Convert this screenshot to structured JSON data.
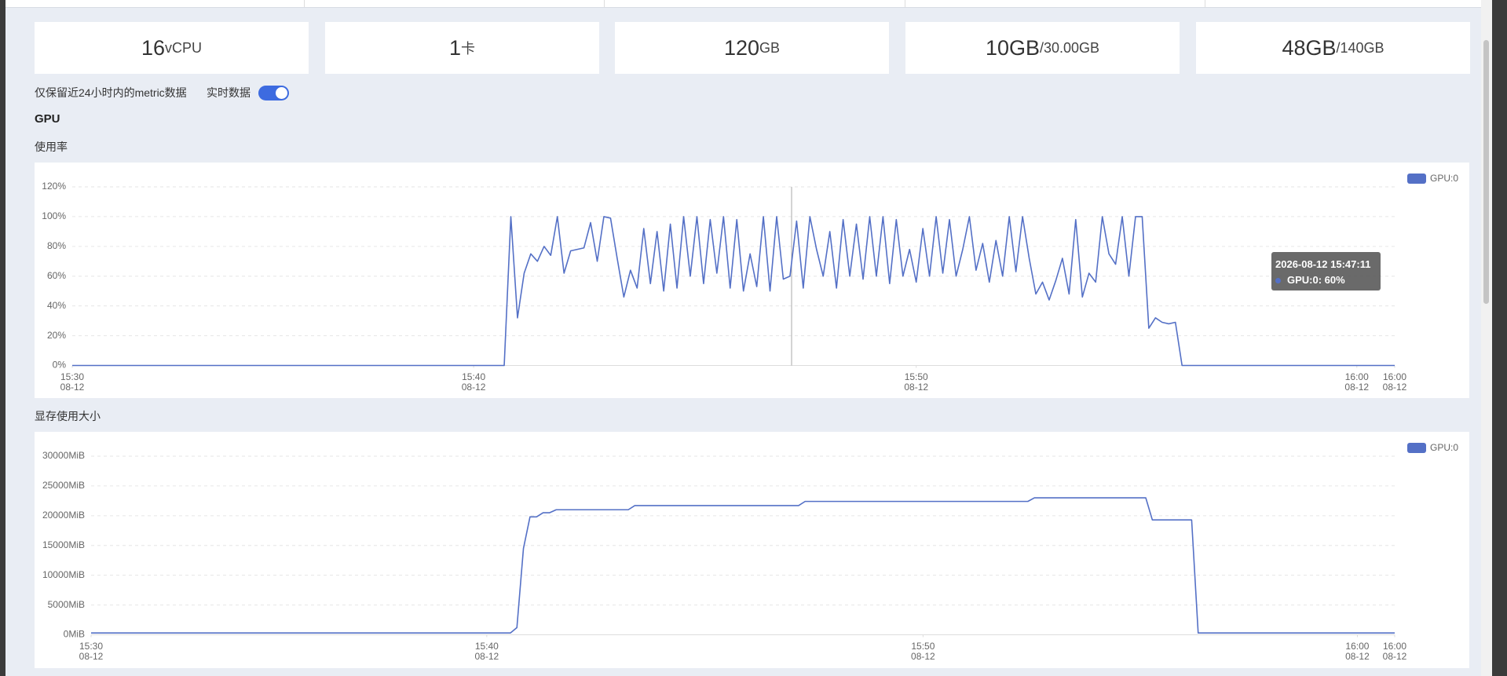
{
  "cards": [
    {
      "value": "16",
      "unit": "vCPU"
    },
    {
      "value": "1",
      "unit": "卡"
    },
    {
      "value": "120",
      "unit": "GB"
    },
    {
      "value": "10GB",
      "unit": "/30.00GB"
    },
    {
      "value": "48GB",
      "unit": "/140GB"
    }
  ],
  "retention_note": "仅保留近24小时内的metric数据",
  "realtime_label": "实时数据",
  "realtime_on": true,
  "section_title": "GPU",
  "chart_data": [
    {
      "type": "line",
      "title": "使用率",
      "xlim": [
        0,
        199
      ],
      "xticks": [
        {
          "value": 0,
          "label": "15:30\n08-12"
        },
        {
          "value": 60.4,
          "label": "15:40\n08-12"
        },
        {
          "value": 127,
          "label": "15:50\n08-12"
        },
        {
          "value": 193.3,
          "label": "16:00\n08-12"
        },
        {
          "value": 199,
          "label": "16:00\n08-12"
        }
      ],
      "ylim": [
        0,
        120
      ],
      "yticks": [
        {
          "value": 0,
          "label": "0%"
        },
        {
          "value": 20,
          "label": "20%"
        },
        {
          "value": 40,
          "label": "40%"
        },
        {
          "value": 60,
          "label": "60%"
        },
        {
          "value": 80,
          "label": "80%"
        },
        {
          "value": 100,
          "label": "100%"
        },
        {
          "value": 120,
          "label": "120%"
        }
      ],
      "grid": true,
      "legend": "top-right",
      "tooltip": {
        "title": "2026-08-12 15:47:11",
        "lines": [
          "GPU:0: 60%"
        ]
      },
      "series": [
        {
          "name": "GPU:0",
          "color": "#5470c6",
          "values": [
            0,
            0,
            0,
            0,
            0,
            0,
            0,
            0,
            0,
            0,
            0,
            0,
            0,
            0,
            0,
            0,
            0,
            0,
            0,
            0,
            0,
            0,
            0,
            0,
            0,
            0,
            0,
            0,
            0,
            0,
            0,
            0,
            0,
            0,
            0,
            0,
            0,
            0,
            0,
            0,
            0,
            0,
            0,
            0,
            0,
            0,
            0,
            0,
            0,
            0,
            0,
            0,
            0,
            0,
            0,
            0,
            0,
            0,
            0,
            0,
            0,
            0,
            0,
            0,
            0,
            0,
            100,
            32,
            62,
            75,
            70,
            80,
            74,
            100,
            62,
            77,
            78,
            79,
            96,
            70,
            100,
            99,
            72,
            46,
            64,
            52,
            92,
            55,
            90,
            50,
            95,
            52,
            100,
            60,
            100,
            55,
            98,
            62,
            100,
            52,
            98,
            50,
            75,
            53,
            100,
            50,
            100,
            58,
            60,
            97,
            52,
            100,
            78,
            60,
            90,
            52,
            98,
            60,
            95,
            58,
            100,
            60,
            100,
            55,
            98,
            60,
            78,
            56,
            92,
            60,
            100,
            62,
            98,
            60,
            78,
            100,
            64,
            82,
            56,
            84,
            60,
            100,
            63,
            100,
            72,
            48,
            56,
            44,
            57,
            72,
            48,
            98,
            46,
            62,
            56,
            100,
            75,
            68,
            100,
            60,
            100,
            100,
            25,
            32,
            29,
            28,
            29,
            0,
            0,
            0,
            0,
            0,
            0,
            0,
            0,
            0,
            0,
            0,
            0,
            0,
            0,
            0,
            0,
            0,
            0,
            0,
            0,
            0,
            0,
            0,
            0,
            0,
            0,
            0,
            0,
            0,
            0,
            0,
            0,
            0
          ]
        }
      ]
    },
    {
      "type": "line",
      "title": "显存使用大小",
      "xlim": [
        0,
        199
      ],
      "xticks": [
        {
          "value": 0,
          "label": "15:30\n08-12"
        },
        {
          "value": 60.4,
          "label": "15:40\n08-12"
        },
        {
          "value": 127,
          "label": "15:50\n08-12"
        },
        {
          "value": 193.3,
          "label": "16:00\n08-12"
        },
        {
          "value": 199,
          "label": "16:00\n08-12"
        }
      ],
      "ylim": [
        0,
        30000
      ],
      "yticks": [
        {
          "value": 0,
          "label": "0MiB"
        },
        {
          "value": 5000,
          "label": "5000MiB"
        },
        {
          "value": 10000,
          "label": "10000MiB"
        },
        {
          "value": 15000,
          "label": "15000MiB"
        },
        {
          "value": 20000,
          "label": "20000MiB"
        },
        {
          "value": 25000,
          "label": "25000MiB"
        },
        {
          "value": 30000,
          "label": "30000MiB"
        }
      ],
      "grid": true,
      "legend": "top-right",
      "series": [
        {
          "name": "GPU:0",
          "color": "#5470c6",
          "values": [
            300,
            300,
            300,
            300,
            300,
            300,
            300,
            300,
            300,
            300,
            300,
            300,
            300,
            300,
            300,
            300,
            300,
            300,
            300,
            300,
            300,
            300,
            300,
            300,
            300,
            300,
            300,
            300,
            300,
            300,
            300,
            300,
            300,
            300,
            300,
            300,
            300,
            300,
            300,
            300,
            300,
            300,
            300,
            300,
            300,
            300,
            300,
            300,
            300,
            300,
            300,
            300,
            300,
            300,
            300,
            300,
            300,
            300,
            300,
            300,
            300,
            300,
            300,
            300,
            300,
            1200,
            14500,
            19800,
            19800,
            20500,
            20500,
            21000,
            21000,
            21000,
            21000,
            21000,
            21000,
            21000,
            21000,
            21000,
            21000,
            21000,
            21000,
            21700,
            21700,
            21700,
            21700,
            21700,
            21700,
            21700,
            21700,
            21700,
            21700,
            21700,
            21700,
            21700,
            21700,
            21700,
            21700,
            21700,
            21700,
            21700,
            21700,
            21700,
            21700,
            21700,
            21700,
            21700,
            21700,
            22400,
            22400,
            22400,
            22400,
            22400,
            22400,
            22400,
            22400,
            22400,
            22400,
            22400,
            22400,
            22400,
            22400,
            22400,
            22400,
            22400,
            22400,
            22400,
            22400,
            22400,
            22400,
            22400,
            22400,
            22400,
            22400,
            22400,
            22400,
            22400,
            22400,
            22400,
            22400,
            22400,
            22400,
            22400,
            23000,
            23000,
            23000,
            23000,
            23000,
            23000,
            23000,
            23000,
            23000,
            23000,
            23000,
            23000,
            23000,
            23000,
            23000,
            23000,
            23000,
            23000,
            19300,
            19300,
            19300,
            19300,
            19300,
            19300,
            19300,
            300,
            300,
            300,
            300,
            300,
            300,
            300,
            300,
            300,
            300,
            300,
            300,
            300,
            300,
            300,
            300,
            300,
            300,
            300,
            300,
            300,
            300,
            300,
            300,
            300,
            300,
            300,
            300,
            300,
            300,
            300
          ]
        }
      ]
    }
  ]
}
